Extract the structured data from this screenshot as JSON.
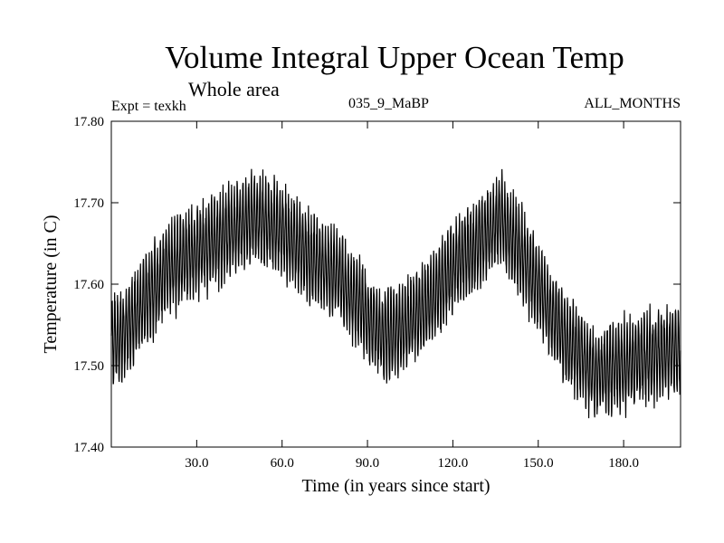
{
  "chart_data": {
    "type": "line",
    "title": "Volume Integral Upper Ocean Temp",
    "subtitle": "Whole area",
    "annotations": {
      "experiment": "Expt = texkh",
      "run": "035_9_MaBP",
      "months": "ALL_MONTHS"
    },
    "xlabel": "Time (in years since start)",
    "ylabel": "Temperature (in C)",
    "xlim": [
      0,
      200
    ],
    "ylim": [
      17.4,
      17.8
    ],
    "xticks": [
      30,
      60,
      90,
      120,
      150,
      180
    ],
    "xtick_labels": [
      "30.0",
      "60.0",
      "90.0",
      "120.0",
      "150.0",
      "180.0"
    ],
    "yticks": [
      17.4,
      17.5,
      17.6,
      17.7,
      17.8
    ],
    "ytick_labels": [
      "17.40",
      "17.50",
      "17.60",
      "17.70",
      "17.80"
    ],
    "grid": false,
    "series": [
      {
        "name": "Upper ocean temperature",
        "sampling": "monthly, seasonal cycle around smoothed mean",
        "smoothed_mean": {
          "x": [
            0,
            5,
            10,
            20,
            30,
            40,
            50,
            60,
            70,
            80,
            90,
            95,
            100,
            110,
            120,
            130,
            137,
            145,
            155,
            160,
            170,
            180,
            190,
            200
          ],
          "y": [
            17.53,
            17.54,
            17.57,
            17.62,
            17.64,
            17.66,
            17.68,
            17.665,
            17.63,
            17.61,
            17.56,
            17.535,
            17.54,
            17.57,
            17.62,
            17.655,
            17.68,
            17.63,
            17.56,
            17.53,
            17.49,
            17.5,
            17.51,
            17.52
          ]
        },
        "seasonal_amplitude": 0.05
      }
    ]
  }
}
